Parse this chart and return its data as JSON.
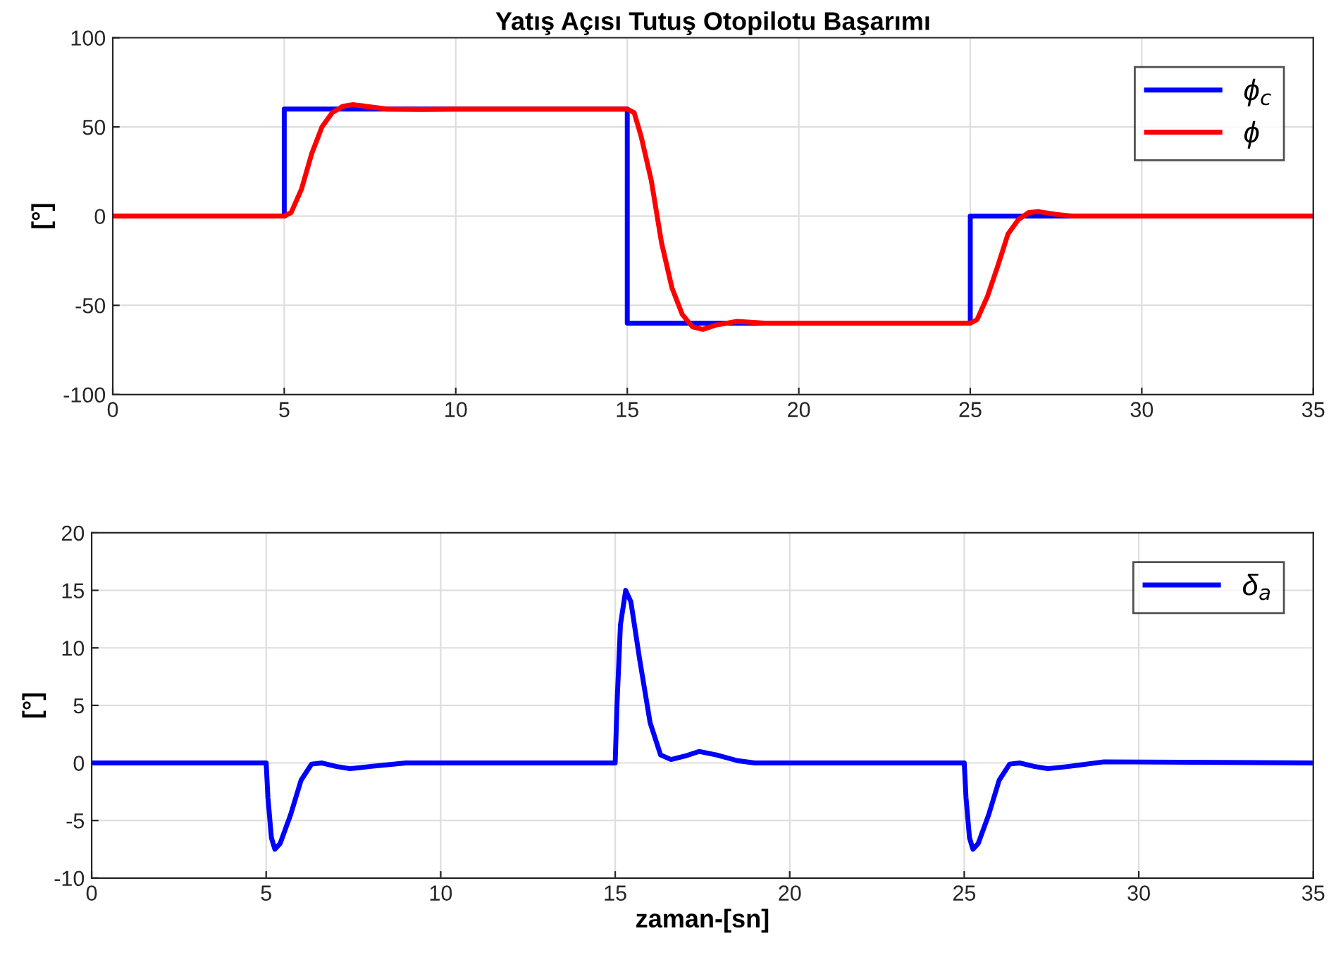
{
  "chart_data": [
    {
      "type": "line",
      "title": "Yatış Açısı Tutuş Otopilotu Başarımı",
      "ylabel": "[°]",
      "xlim": [
        0,
        35
      ],
      "ylim": [
        -100,
        100
      ],
      "xticks": [
        0,
        5,
        10,
        15,
        20,
        25,
        30,
        35
      ],
      "yticks": [
        -100,
        -50,
        0,
        50,
        100
      ],
      "grid": true,
      "legend": "top right",
      "line_style": "solid",
      "marker": "none",
      "series": [
        {
          "name": "ϕ$_{c}$",
          "color": "#0000ff",
          "x": [
            0,
            5,
            5,
            15,
            15,
            25,
            25,
            35
          ],
          "values": [
            0,
            0,
            60,
            60,
            -60,
            -60,
            0,
            0
          ]
        },
        {
          "name": "ϕ",
          "color": "#ff0000",
          "x": [
            0,
            5,
            5.2,
            5.5,
            5.8,
            6.1,
            6.4,
            6.7,
            7.0,
            7.4,
            8,
            9,
            10,
            15,
            15.2,
            15.4,
            15.7,
            16.0,
            16.3,
            16.6,
            16.9,
            17.2,
            17.6,
            18.2,
            19,
            25,
            25.2,
            25.5,
            25.8,
            26.1,
            26.4,
            26.7,
            27.0,
            27.5,
            28,
            35
          ],
          "values": [
            0,
            0,
            2,
            15,
            35,
            50,
            58,
            61.5,
            62.5,
            61.5,
            60,
            59.8,
            60,
            60,
            58,
            45,
            20,
            -15,
            -40,
            -55,
            -62,
            -63.5,
            -61,
            -59,
            -60,
            -60,
            -58,
            -45,
            -28,
            -10,
            -2,
            2,
            2.5,
            1,
            0,
            0
          ]
        }
      ]
    },
    {
      "type": "line",
      "ylabel": "[°]",
      "xlabel": "zaman-[sn]",
      "xlim": [
        0,
        35
      ],
      "ylim": [
        -10,
        20
      ],
      "xticks": [
        0,
        5,
        10,
        15,
        20,
        25,
        30,
        35
      ],
      "yticks": [
        -10,
        -5,
        0,
        5,
        10,
        15,
        20
      ],
      "grid": true,
      "legend": "top right",
      "line_style": "solid",
      "marker": "none",
      "series": [
        {
          "name": "δ$_{a}$",
          "color": "#0000ff",
          "x": [
            0,
            5,
            5.05,
            5.15,
            5.25,
            5.4,
            5.7,
            6.0,
            6.3,
            6.6,
            7.0,
            7.4,
            8,
            9,
            15,
            15.05,
            15.15,
            15.3,
            15.45,
            15.7,
            16,
            16.3,
            16.6,
            17,
            17.4,
            17.9,
            18.5,
            19,
            25,
            25.05,
            25.15,
            25.25,
            25.4,
            25.7,
            26,
            26.3,
            26.6,
            27,
            27.4,
            28,
            29,
            35
          ],
          "values": [
            0,
            0,
            -3,
            -6.5,
            -7.5,
            -7,
            -4.5,
            -1.5,
            -0.1,
            0,
            -0.3,
            -0.5,
            -0.3,
            0,
            0,
            5,
            12,
            15,
            14,
            9,
            3.5,
            0.7,
            0.3,
            0.6,
            1,
            0.7,
            0.2,
            0,
            0,
            -3,
            -6.5,
            -7.5,
            -7,
            -4.5,
            -1.5,
            -0.1,
            0,
            -0.3,
            -0.5,
            -0.3,
            0.1,
            0
          ]
        }
      ]
    }
  ]
}
